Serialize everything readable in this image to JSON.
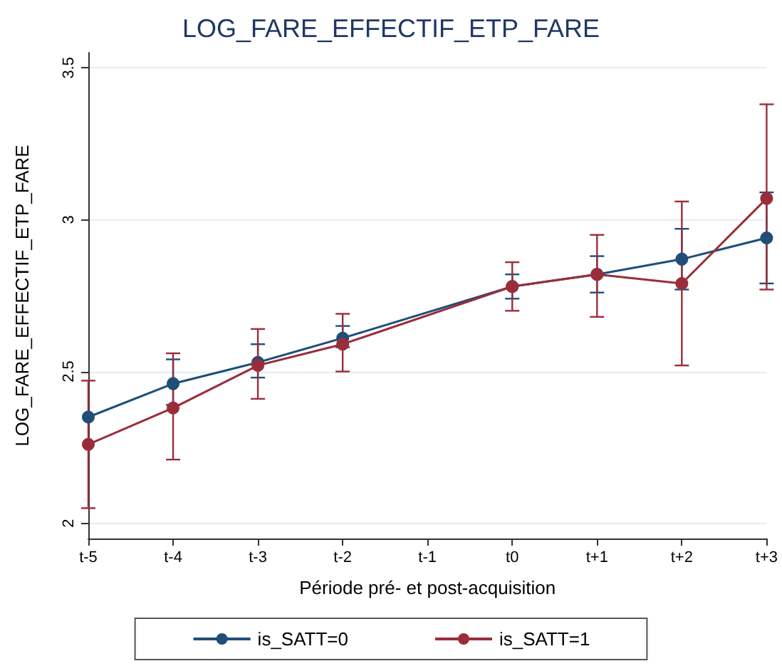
{
  "chart_data": {
    "type": "line",
    "title": "LOG_FARE_EFFECTIF_ETP_FARE",
    "xlabel": "Période pré- et post-acquisition",
    "ylabel": "LOG_FARE_EFFECTIF_ETP_FARE",
    "categories": [
      "t-5",
      "t-4",
      "t-3",
      "t-2",
      "t-1",
      "t0",
      "t+1",
      "t+2",
      "t+3"
    ],
    "series": [
      {
        "name": "is_SATT=0",
        "color": "#1f4e79",
        "values": [
          2.35,
          2.46,
          2.53,
          2.61,
          null,
          2.78,
          2.82,
          2.87,
          2.94
        ],
        "errors": [
          null,
          [
            2.39,
            2.54
          ],
          [
            2.48,
            2.59
          ],
          [
            2.58,
            2.65
          ],
          null,
          [
            2.74,
            2.82
          ],
          [
            2.76,
            2.88
          ],
          [
            2.77,
            2.97
          ],
          [
            2.79,
            3.09
          ]
        ]
      },
      {
        "name": "is_SATT=1",
        "color": "#9b2d3a",
        "values": [
          2.26,
          2.38,
          2.52,
          2.59,
          null,
          2.78,
          2.82,
          2.79,
          3.07
        ],
        "errors": [
          [
            2.05,
            2.47
          ],
          [
            2.21,
            2.56
          ],
          [
            2.41,
            2.64
          ],
          [
            2.5,
            2.69
          ],
          null,
          [
            2.7,
            2.86
          ],
          [
            2.68,
            2.95
          ],
          [
            2.52,
            3.06
          ],
          [
            2.77,
            3.38
          ]
        ]
      }
    ],
    "ylim": [
      1.95,
      3.55
    ],
    "yticks": [
      2,
      2.5,
      3,
      3.5
    ],
    "grid": "y",
    "legend": "bottom",
    "marker": "circle",
    "line_style": "solid"
  }
}
